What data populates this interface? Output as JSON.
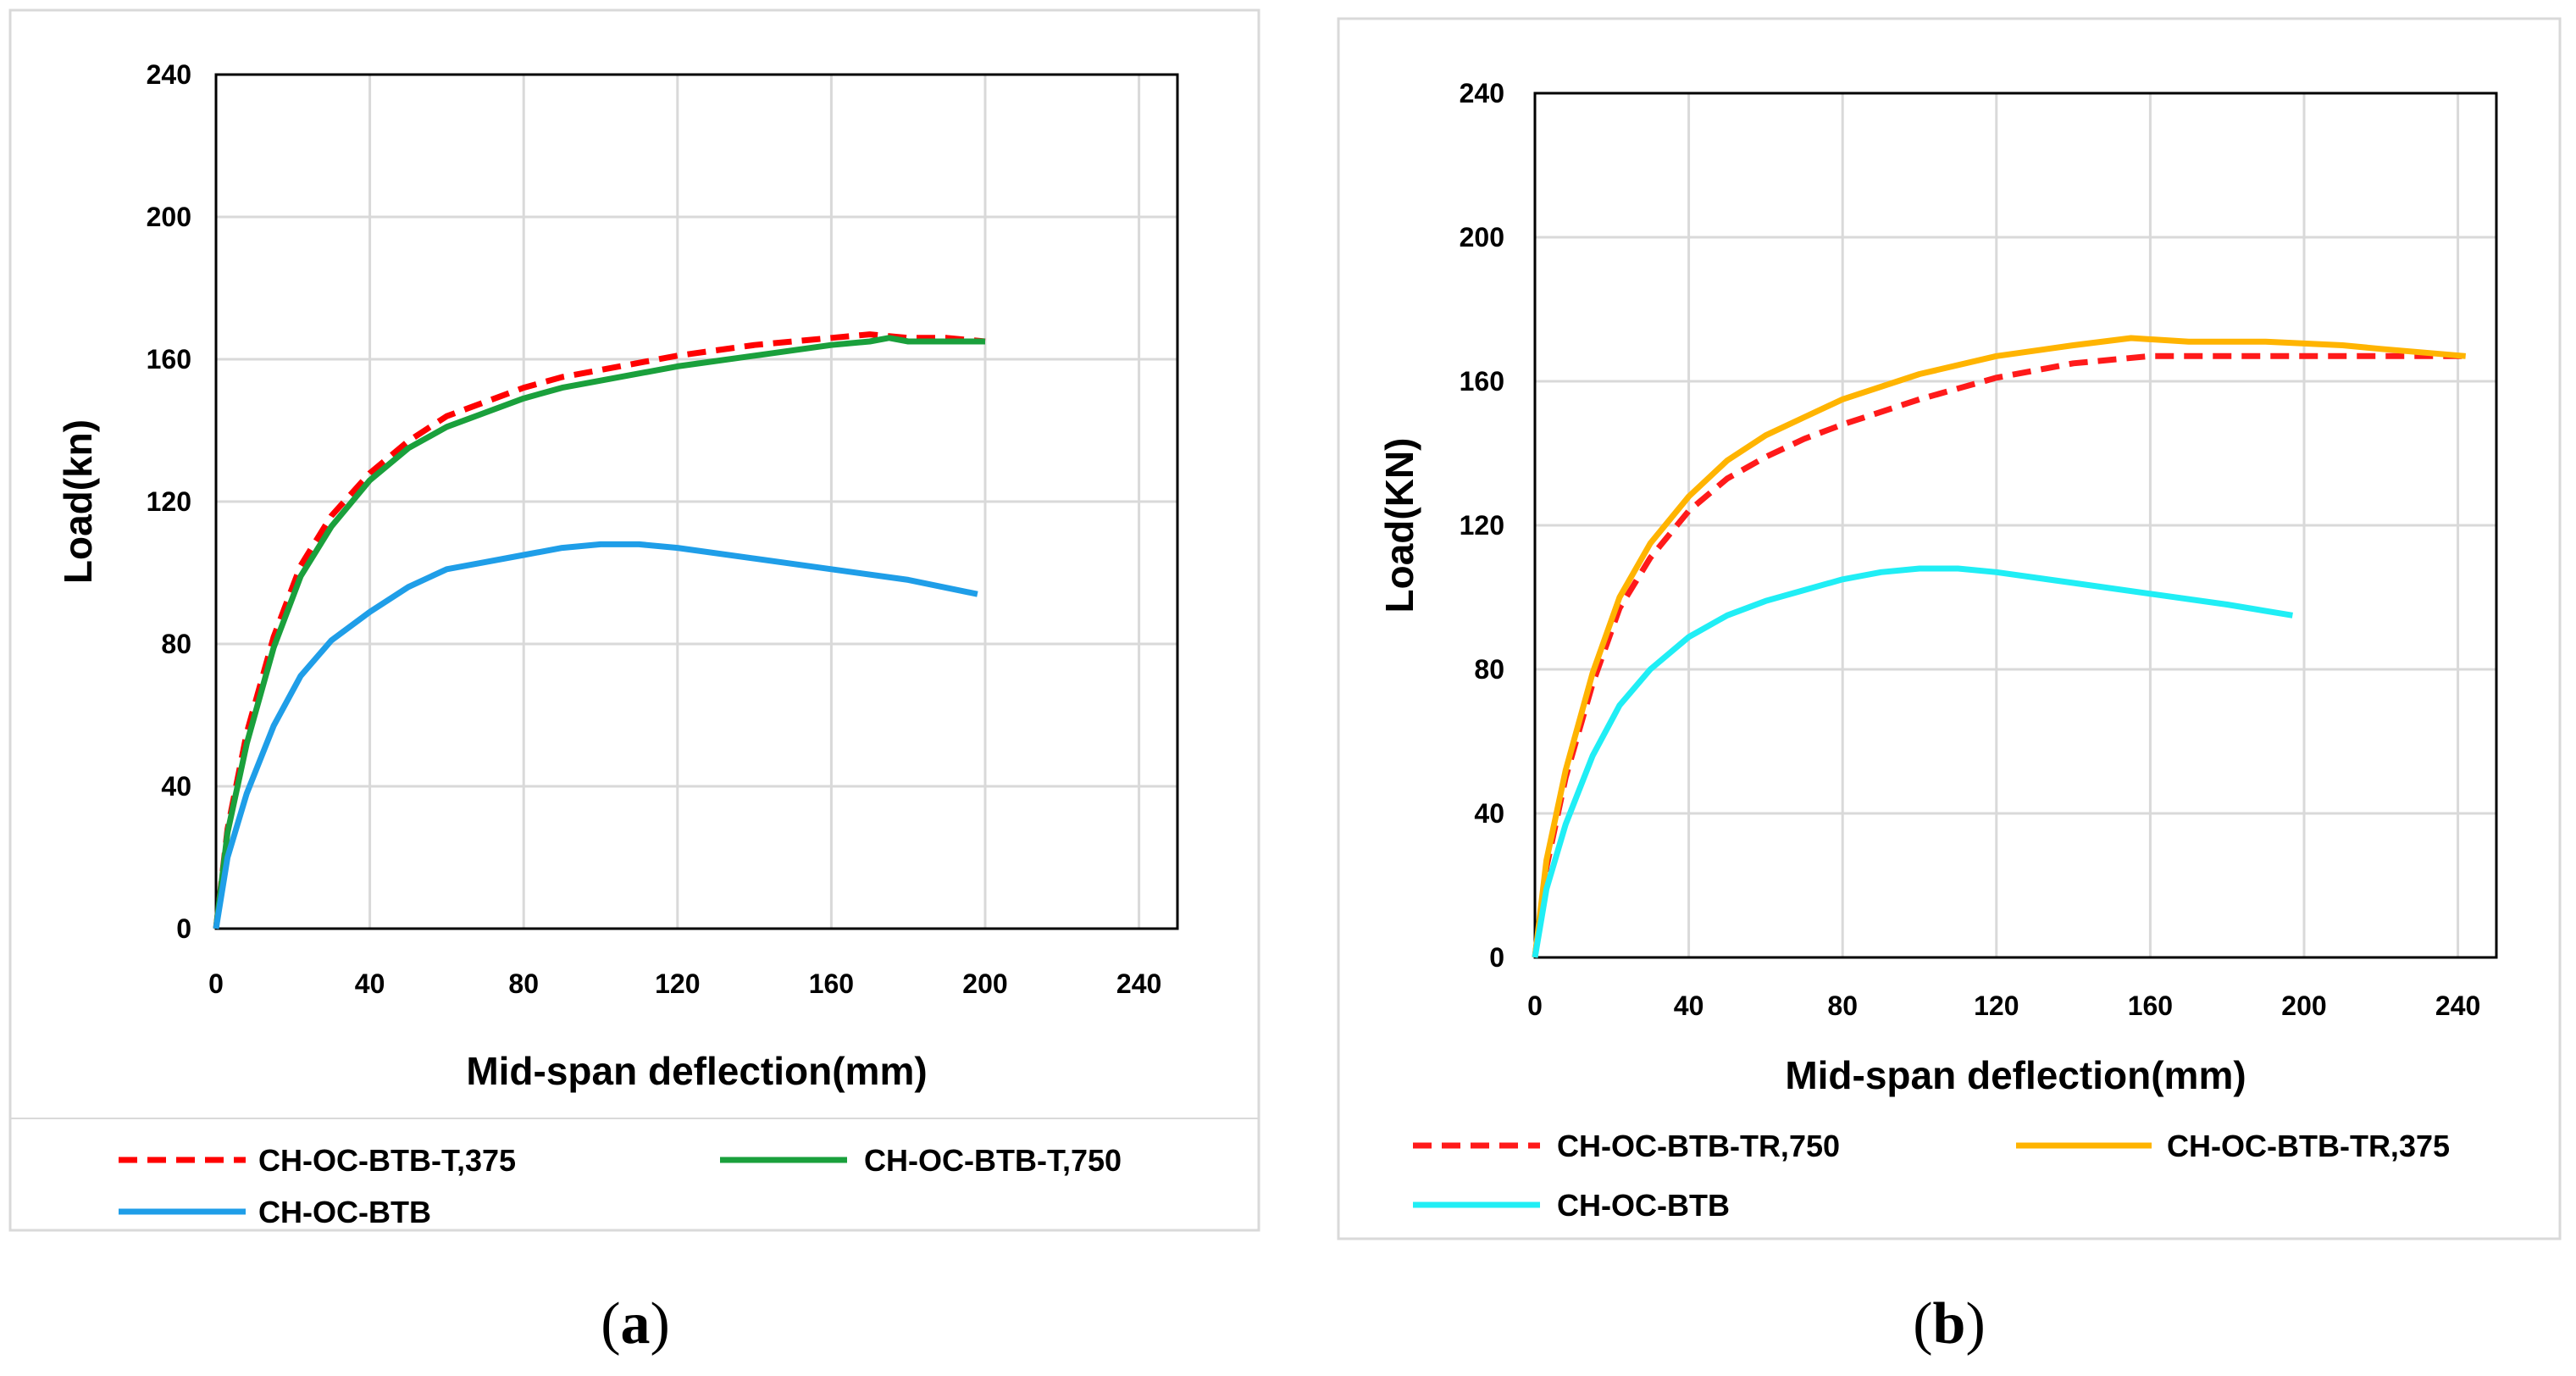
{
  "chart_data": [
    {
      "type": "line",
      "panel_label": "a",
      "xlabel": "Mid-span  deflection(mm)",
      "ylabel": "Load(kn)",
      "xlim": [
        0,
        250
      ],
      "ylim": [
        0,
        240
      ],
      "xticks": [
        0,
        40,
        80,
        120,
        160,
        200,
        240
      ],
      "yticks": [
        0,
        40,
        80,
        120,
        160,
        200,
        240
      ],
      "grid": true,
      "legend": "bottom",
      "series": [
        {
          "name": "CH-OC-BTB-T,375",
          "color": "#ff0000",
          "style": "dashed",
          "x": [
            0,
            3,
            8,
            15,
            22,
            30,
            40,
            50,
            60,
            70,
            80,
            90,
            100,
            120,
            140,
            160,
            170,
            180,
            190,
            200
          ],
          "y": [
            0,
            28,
            55,
            82,
            102,
            116,
            128,
            137,
            144,
            148,
            152,
            155,
            157,
            161,
            164,
            166,
            167,
            166,
            166,
            165
          ]
        },
        {
          "name": "CH-OC-BTB-T,750",
          "color": "#1aa03c",
          "style": "solid",
          "x": [
            0,
            3,
            8,
            15,
            22,
            30,
            40,
            50,
            60,
            70,
            80,
            90,
            100,
            120,
            140,
            160,
            170,
            175,
            180,
            190,
            200
          ],
          "y": [
            0,
            27,
            52,
            79,
            99,
            113,
            126,
            135,
            141,
            145,
            149,
            152,
            154,
            158,
            161,
            164,
            165,
            166,
            165,
            165,
            165
          ]
        },
        {
          "name": "CH-OC-BTB",
          "color": "#1f9ee8",
          "style": "solid",
          "x": [
            0,
            3,
            8,
            15,
            22,
            30,
            40,
            50,
            60,
            70,
            80,
            90,
            100,
            110,
            120,
            140,
            160,
            180,
            198
          ],
          "y": [
            0,
            20,
            38,
            57,
            71,
            81,
            89,
            96,
            101,
            103,
            105,
            107,
            108,
            108,
            107,
            104,
            101,
            98,
            94
          ]
        }
      ]
    },
    {
      "type": "line",
      "panel_label": "b",
      "xlabel": "Mid-span  deflection(mm)",
      "ylabel": "Load(KN)",
      "xlim": [
        0,
        250
      ],
      "ylim": [
        0,
        240
      ],
      "xticks": [
        0,
        40,
        80,
        120,
        160,
        200,
        240
      ],
      "yticks": [
        0,
        40,
        80,
        120,
        160,
        200,
        240
      ],
      "grid": true,
      "legend": "bottom",
      "series": [
        {
          "name": "CH-OC-BTB-TR,750",
          "color": "#ff1a1a",
          "style": "dashed",
          "x": [
            0,
            3,
            8,
            15,
            22,
            30,
            40,
            50,
            60,
            70,
            80,
            100,
            120,
            140,
            160,
            180,
            200,
            220,
            242
          ],
          "y": [
            0,
            25,
            50,
            76,
            97,
            111,
            124,
            133,
            139,
            144,
            148,
            155,
            161,
            165,
            167,
            167,
            167,
            167,
            167
          ]
        },
        {
          "name": "CH-OC-BTB-TR,375",
          "color": "#ffb400",
          "style": "solid",
          "x": [
            0,
            3,
            8,
            15,
            22,
            30,
            40,
            50,
            60,
            70,
            80,
            100,
            120,
            140,
            155,
            170,
            190,
            210,
            220,
            242
          ],
          "y": [
            0,
            27,
            52,
            79,
            100,
            115,
            128,
            138,
            145,
            150,
            155,
            162,
            167,
            170,
            172,
            171,
            171,
            170,
            169,
            167
          ]
        },
        {
          "name": "CH-OC-BTB",
          "color": "#20eef5",
          "style": "solid",
          "x": [
            0,
            3,
            8,
            15,
            22,
            30,
            40,
            50,
            60,
            70,
            80,
            90,
            100,
            110,
            120,
            140,
            160,
            180,
            197
          ],
          "y": [
            0,
            19,
            37,
            56,
            70,
            80,
            89,
            95,
            99,
            102,
            105,
            107,
            108,
            108,
            107,
            104,
            101,
            98,
            95
          ]
        }
      ]
    }
  ]
}
